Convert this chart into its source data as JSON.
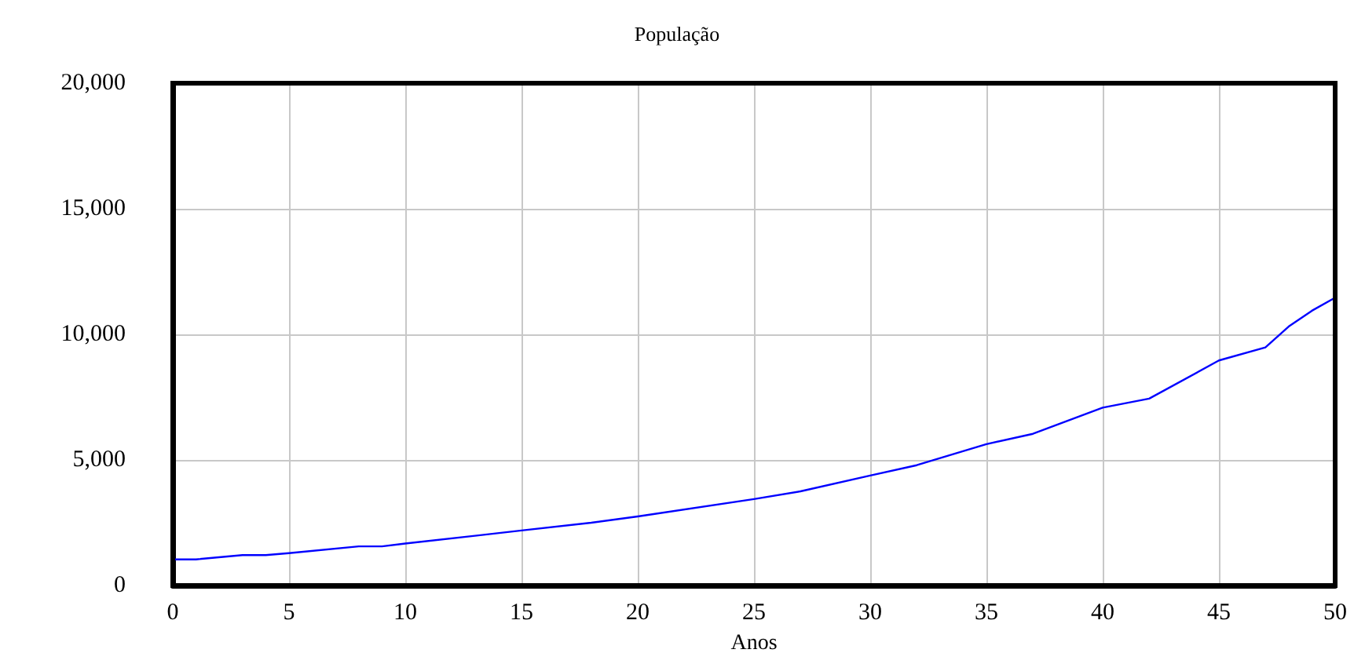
{
  "chart_data": {
    "type": "line",
    "title": "População",
    "xlabel": "Anos",
    "x": [
      0,
      1,
      3,
      4,
      5,
      8,
      9,
      10,
      13,
      15,
      18,
      20,
      25,
      27,
      30,
      32,
      35,
      37,
      40,
      42,
      45,
      47,
      48,
      49,
      50
    ],
    "series": [
      {
        "color": "#0000ff",
        "values": [
          1040,
          1040,
          1210,
          1210,
          1290,
          1560,
          1560,
          1670,
          1980,
          2190,
          2500,
          2750,
          3440,
          3750,
          4380,
          4790,
          5630,
          6040,
          7080,
          7440,
          8960,
          9480,
          10310,
          10940,
          11460
        ]
      }
    ],
    "xlim": [
      0,
      50
    ],
    "xticks": [
      0,
      5,
      10,
      15,
      20,
      25,
      30,
      35,
      40,
      45,
      50
    ],
    "ylim": [
      0,
      20000
    ],
    "yticks": [
      0,
      {
        "value": 5000,
        "label": "5,000"
      },
      {
        "value": 10000,
        "label": "10,000"
      },
      {
        "value": 15000,
        "label": "15,000"
      },
      {
        "value": 20000,
        "label": "20,000"
      }
    ],
    "grid": true,
    "marker": "none",
    "line_style": "solid"
  }
}
